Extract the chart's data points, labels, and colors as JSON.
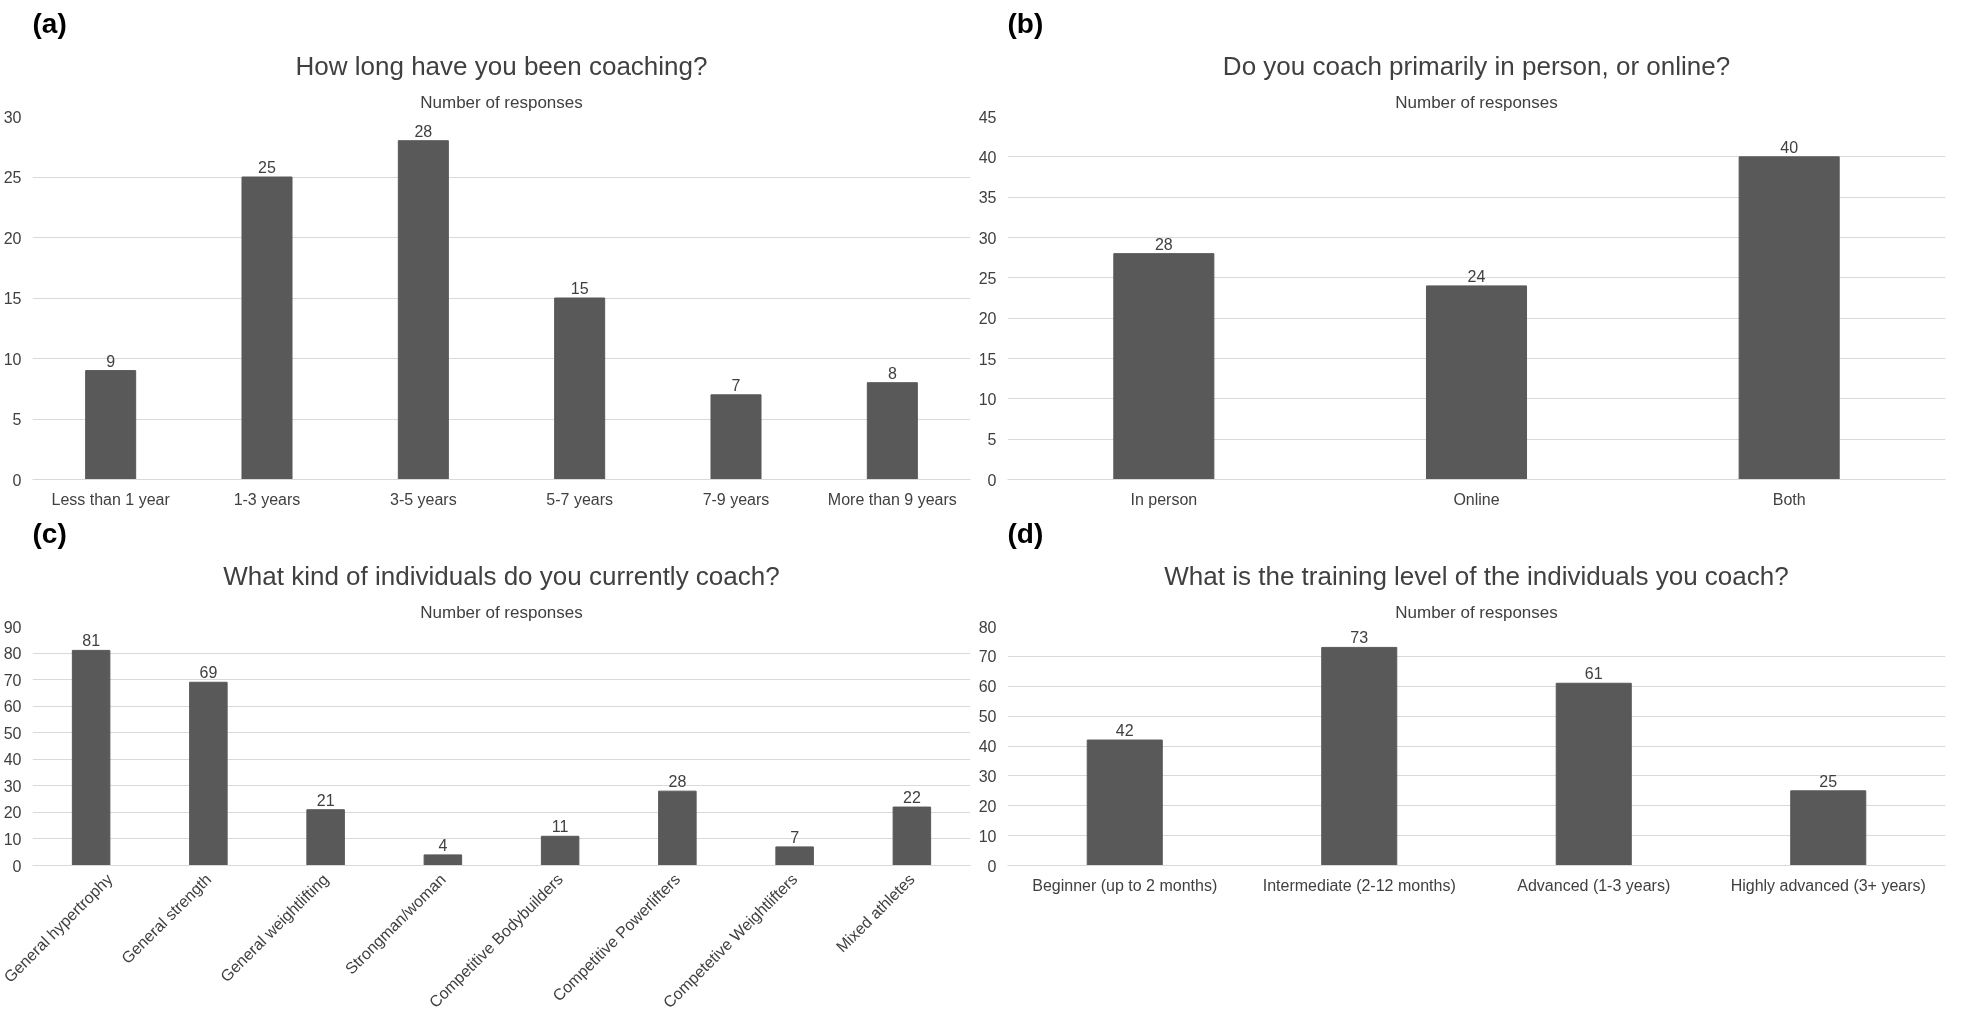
{
  "chart_data": [
    {
      "type": "bar",
      "title": "How long have you been coaching?",
      "subtitle": "Number of responses",
      "annotations": [
        "(a)"
      ],
      "categories": [
        "Less than 1 year",
        "1-3 years",
        "3-5 years",
        "5-7 years",
        "7-9 years",
        "More than 9 years"
      ],
      "values": [
        9,
        25,
        28,
        15,
        7,
        8
      ],
      "color": "#595959",
      "ylim": [
        0,
        30
      ],
      "yticks": [
        0,
        5,
        10,
        15,
        20,
        25,
        30
      ],
      "grid": "y",
      "data_labels": true
    },
    {
      "type": "bar",
      "title": "Do you coach primarily in person, or online?",
      "subtitle": "Number of responses",
      "annotations": [
        "(b)"
      ],
      "categories": [
        "In person",
        "Online",
        "Both"
      ],
      "values": [
        28,
        24,
        40
      ],
      "color": "#595959",
      "ylim": [
        0,
        45
      ],
      "yticks": [
        0,
        5,
        10,
        15,
        20,
        25,
        30,
        35,
        40,
        45
      ],
      "grid": "y",
      "data_labels": true
    },
    {
      "type": "bar",
      "title": "What kind of individuals do you currently coach?",
      "subtitle": "Number of responses",
      "annotations": [
        "(c)"
      ],
      "categories": [
        "General hypertrophy",
        "General strength",
        "General weightlifting",
        "Strongman/woman",
        "Competitive Bodybuilders",
        "Competitive Powerlifters",
        "Competetive Weightlifters",
        "Mixed athletes"
      ],
      "values": [
        81,
        69,
        21,
        4,
        11,
        28,
        7,
        22
      ],
      "color": "#595959",
      "ylim": [
        0,
        90
      ],
      "yticks": [
        0,
        10,
        20,
        30,
        40,
        50,
        60,
        70,
        80,
        90
      ],
      "grid": "y",
      "data_labels": true
    },
    {
      "type": "bar",
      "title": "What is the training level of the individuals you coach?",
      "subtitle": "Number of responses",
      "annotations": [
        "(d)"
      ],
      "categories": [
        "Beginner (up to 2 months)",
        "Intermediate (2-12 months)",
        "Advanced (1-3 years)",
        "Highly advanced (3+ years)"
      ],
      "values": [
        42,
        73,
        61,
        25
      ],
      "color": "#595959",
      "ylim": [
        0,
        80
      ],
      "yticks": [
        0,
        10,
        20,
        30,
        40,
        50,
        60,
        70,
        80
      ],
      "grid": "y",
      "data_labels": true
    }
  ]
}
